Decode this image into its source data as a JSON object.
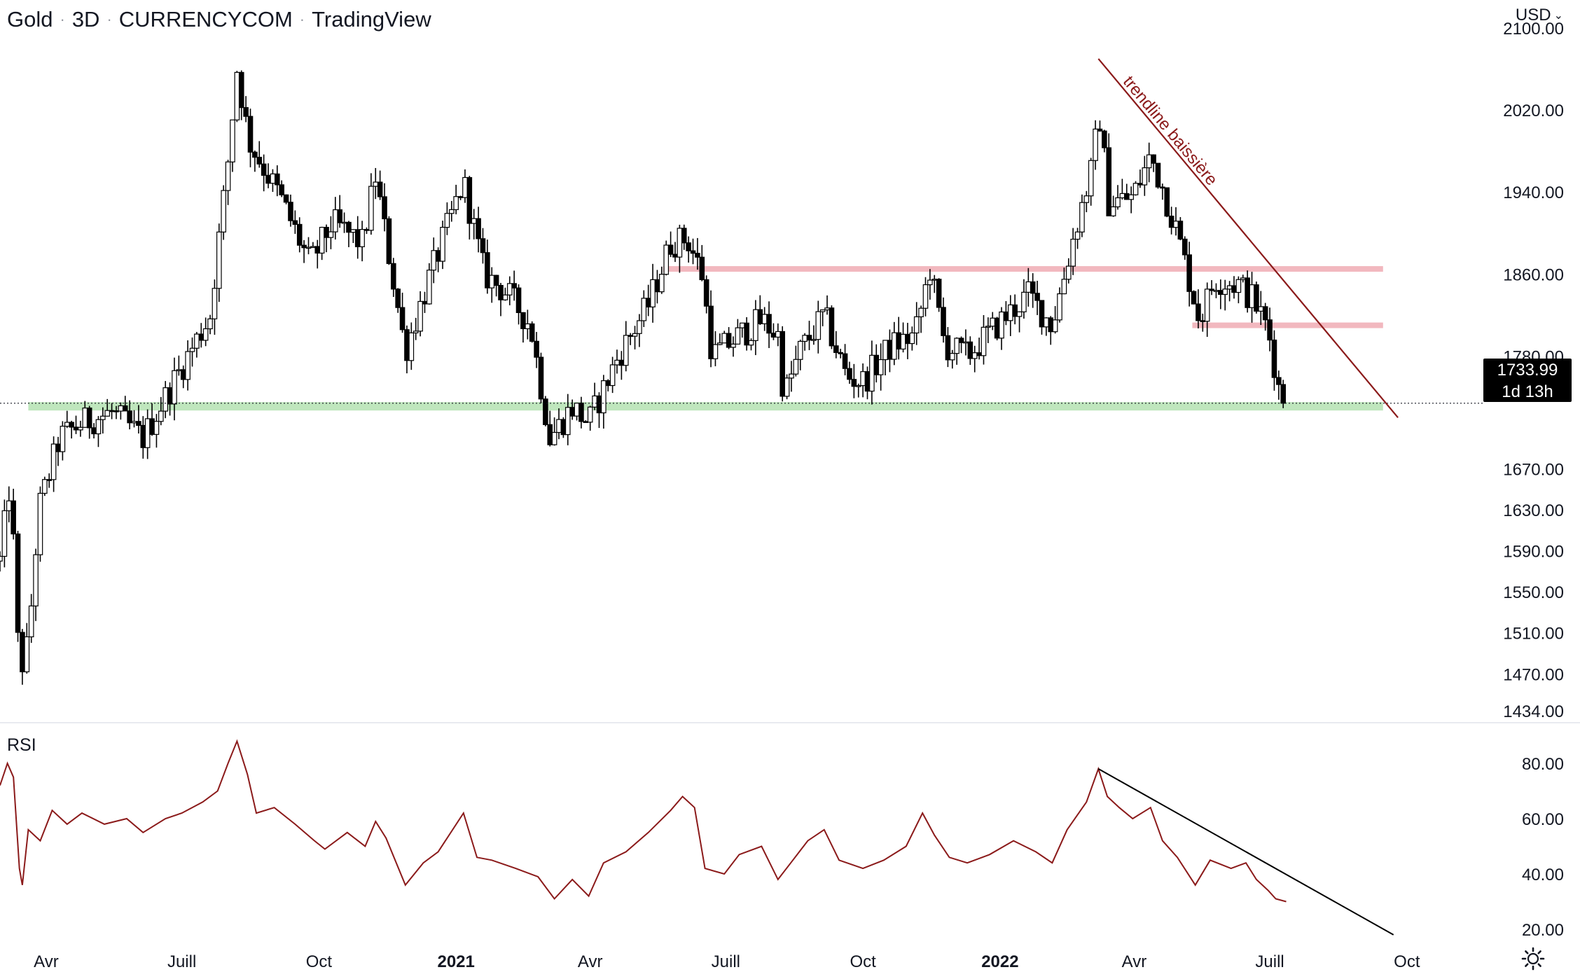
{
  "header": {
    "symbol": "Gold",
    "interval": "3D",
    "exchange": "CURRENCYCOM",
    "source": "TradingView",
    "separator": "·"
  },
  "currency": {
    "label": "USD",
    "icon": "chevron-down-icon"
  },
  "price_tag": {
    "price": "1733.99",
    "countdown": "1d 13h"
  },
  "rsi_panel": {
    "label": "RSI"
  },
  "settings": {
    "icon": "gear-icon"
  },
  "colors": {
    "candle": "#000000",
    "rsi_line": "#8b1a1a",
    "trendline": "#8b1a1a",
    "resistance_zone": "#f2b8bf",
    "support_zone": "#bfe6bd",
    "rsi_trendline": "#000000"
  },
  "chart_data": [
    {
      "type": "candlestick",
      "title": "",
      "y_axis": {
        "min": 1434,
        "max": 2100,
        "ticks": [
          "2100.00",
          "2020.00",
          "1940.00",
          "1860.00",
          "1780.00",
          "1670.00",
          "1630.00",
          "1590.00",
          "1550.00",
          "1510.00",
          "1470.00",
          "1434.00"
        ]
      },
      "x_axis": {
        "range": [
          "2020-03-01",
          "2022-10-10"
        ],
        "ticks": [
          {
            "label": "Avr",
            "date": "2020-04-01",
            "bold": false
          },
          {
            "label": "Juill",
            "date": "2020-07-01",
            "bold": false
          },
          {
            "label": "Oct",
            "date": "2020-10-01",
            "bold": false
          },
          {
            "label": "2021",
            "date": "2021-01-01",
            "bold": true
          },
          {
            "label": "Avr",
            "date": "2021-04-01",
            "bold": false
          },
          {
            "label": "Juill",
            "date": "2021-07-01",
            "bold": false
          },
          {
            "label": "Oct",
            "date": "2021-10-01",
            "bold": false
          },
          {
            "label": "2022",
            "date": "2022-01-01",
            "bold": true
          },
          {
            "label": "Avr",
            "date": "2022-04-01",
            "bold": false
          },
          {
            "label": "Juill",
            "date": "2022-07-01",
            "bold": false
          },
          {
            "label": "Oct",
            "date": "2022-10-01",
            "bold": false
          }
        ]
      },
      "last_price": 1733.99,
      "anchors": [
        [
          "2020-03-01",
          1580
        ],
        [
          "2020-03-08",
          1660
        ],
        [
          "2020-03-14",
          1470
        ],
        [
          "2020-03-20",
          1500
        ],
        [
          "2020-03-27",
          1630
        ],
        [
          "2020-04-10",
          1700
        ],
        [
          "2020-04-25",
          1715
        ],
        [
          "2020-05-15",
          1725
        ],
        [
          "2020-06-05",
          1700
        ],
        [
          "2020-06-20",
          1740
        ],
        [
          "2020-07-05",
          1780
        ],
        [
          "2020-07-20",
          1820
        ],
        [
          "2020-08-01",
          1970
        ],
        [
          "2020-08-07",
          2060
        ],
        [
          "2020-08-15",
          1990
        ],
        [
          "2020-09-05",
          1935
        ],
        [
          "2020-09-25",
          1870
        ],
        [
          "2020-10-10",
          1910
        ],
        [
          "2020-10-30",
          1890
        ],
        [
          "2020-11-08",
          1955
        ],
        [
          "2020-11-28",
          1785
        ],
        [
          "2020-12-15",
          1860
        ],
        [
          "2021-01-06",
          1950
        ],
        [
          "2021-01-20",
          1860
        ],
        [
          "2021-02-05",
          1840
        ],
        [
          "2021-02-20",
          1810
        ],
        [
          "2021-03-05",
          1700
        ],
        [
          "2021-03-20",
          1730
        ],
        [
          "2021-03-31",
          1715
        ],
        [
          "2021-04-20",
          1780
        ],
        [
          "2021-05-10",
          1830
        ],
        [
          "2021-05-25",
          1890
        ],
        [
          "2021-06-05",
          1895
        ],
        [
          "2021-06-15",
          1860
        ],
        [
          "2021-06-22",
          1780
        ],
        [
          "2021-07-10",
          1800
        ],
        [
          "2021-07-25",
          1815
        ],
        [
          "2021-08-05",
          1800
        ],
        [
          "2021-08-09",
          1740
        ],
        [
          "2021-08-20",
          1785
        ],
        [
          "2021-09-05",
          1820
        ],
        [
          "2021-09-20",
          1760
        ],
        [
          "2021-10-01",
          1755
        ],
        [
          "2021-10-20",
          1790
        ],
        [
          "2021-11-05",
          1800
        ],
        [
          "2021-11-15",
          1865
        ],
        [
          "2021-11-25",
          1790
        ],
        [
          "2021-12-10",
          1780
        ],
        [
          "2021-12-30",
          1810
        ],
        [
          "2022-01-20",
          1840
        ],
        [
          "2022-02-05",
          1810
        ],
        [
          "2022-02-20",
          1900
        ],
        [
          "2022-03-05",
          1970
        ],
        [
          "2022-03-08",
          2025
        ],
        [
          "2022-03-15",
          1930
        ],
        [
          "2022-03-31",
          1935
        ],
        [
          "2022-04-12",
          1975
        ],
        [
          "2022-04-20",
          1945
        ],
        [
          "2022-04-30",
          1900
        ],
        [
          "2022-05-15",
          1815
        ],
        [
          "2022-05-25",
          1855
        ],
        [
          "2022-06-10",
          1850
        ],
        [
          "2022-06-20",
          1835
        ],
        [
          "2022-06-30",
          1805
        ],
        [
          "2022-07-08",
          1742
        ],
        [
          "2022-07-12",
          1734
        ]
      ],
      "annotations": {
        "downtrend_line": {
          "label": "trendline baissière",
          "from": [
            "2022-03-08",
            2070
          ],
          "to": [
            "2022-09-25",
            1720
          ]
        },
        "resistance_zones": [
          {
            "from": "2021-05-20",
            "to": "2022-09-15",
            "price": 1865
          },
          {
            "from": "2022-05-10",
            "to": "2022-09-15",
            "price": 1810
          }
        ],
        "support_zone": {
          "from": "2020-03-20",
          "to": "2022-09-15",
          "price": 1731
        }
      }
    },
    {
      "type": "line",
      "title": "",
      "series_label": "RSI",
      "y_axis": {
        "min": 20,
        "max": 80,
        "ticks": [
          "80.00",
          "60.00",
          "40.00",
          "20.00"
        ]
      },
      "values": [
        [
          [
            "2020-03-01",
            72
          ],
          [
            "2020-03-06",
            80
          ],
          [
            "2020-03-10",
            75
          ],
          [
            "2020-03-14",
            42
          ],
          [
            "2020-03-16",
            36
          ],
          [
            "2020-03-20",
            56
          ],
          [
            "2020-03-28",
            52
          ],
          [
            "2020-04-05",
            63
          ],
          [
            "2020-04-15",
            58
          ],
          [
            "2020-04-25",
            62
          ],
          [
            "2020-05-10",
            58
          ],
          [
            "2020-05-25",
            60
          ],
          [
            "2020-06-05",
            55
          ],
          [
            "2020-06-20",
            60
          ],
          [
            "2020-07-01",
            62
          ],
          [
            "2020-07-15",
            66
          ],
          [
            "2020-07-25",
            70
          ],
          [
            "2020-08-01",
            80
          ],
          [
            "2020-08-07",
            88
          ],
          [
            "2020-08-14",
            76
          ],
          [
            "2020-08-20",
            62
          ],
          [
            "2020-09-01",
            64
          ],
          [
            "2020-09-15",
            58
          ],
          [
            "2020-09-28",
            52
          ],
          [
            "2020-10-05",
            49
          ],
          [
            "2020-10-20",
            55
          ],
          [
            "2020-11-01",
            50
          ],
          [
            "2020-11-08",
            59
          ],
          [
            "2020-11-15",
            53
          ],
          [
            "2020-11-28",
            36
          ],
          [
            "2020-12-10",
            44
          ],
          [
            "2020-12-20",
            48
          ],
          [
            "2021-01-06",
            62
          ],
          [
            "2021-01-15",
            46
          ],
          [
            "2021-01-25",
            45
          ],
          [
            "2021-02-10",
            42
          ],
          [
            "2021-02-25",
            39
          ],
          [
            "2021-03-08",
            31
          ],
          [
            "2021-03-20",
            38
          ],
          [
            "2021-03-31",
            32
          ],
          [
            "2021-04-10",
            44
          ],
          [
            "2021-04-25",
            48
          ],
          [
            "2021-05-10",
            55
          ],
          [
            "2021-05-25",
            63
          ],
          [
            "2021-06-02",
            68
          ],
          [
            "2021-06-10",
            64
          ],
          [
            "2021-06-17",
            42
          ],
          [
            "2021-06-30",
            40
          ],
          [
            "2021-07-10",
            47
          ],
          [
            "2021-07-25",
            50
          ],
          [
            "2021-08-05",
            38
          ],
          [
            "2021-08-15",
            45
          ],
          [
            "2021-08-25",
            52
          ],
          [
            "2021-09-05",
            56
          ],
          [
            "2021-09-15",
            45
          ],
          [
            "2021-10-01",
            42
          ],
          [
            "2021-10-15",
            45
          ],
          [
            "2021-10-30",
            50
          ],
          [
            "2021-11-10",
            62
          ],
          [
            "2021-11-18",
            54
          ],
          [
            "2021-11-28",
            46
          ],
          [
            "2021-12-10",
            44
          ],
          [
            "2021-12-25",
            47
          ],
          [
            "2022-01-10",
            52
          ],
          [
            "2022-01-25",
            48
          ],
          [
            "2022-02-05",
            44
          ],
          [
            "2022-02-15",
            56
          ],
          [
            "2022-02-28",
            66
          ],
          [
            "2022-03-08",
            78
          ],
          [
            "2022-03-14",
            68
          ],
          [
            "2022-03-22",
            64
          ],
          [
            "2022-03-31",
            60
          ],
          [
            "2022-04-12",
            64
          ],
          [
            "2022-04-20",
            52
          ],
          [
            "2022-04-30",
            46
          ],
          [
            "2022-05-12",
            36
          ],
          [
            "2022-05-22",
            45
          ],
          [
            "2022-06-05",
            42
          ],
          [
            "2022-06-15",
            44
          ],
          [
            "2022-06-22",
            38
          ],
          [
            "2022-06-30",
            34
          ],
          [
            "2022-07-05",
            31
          ],
          [
            "2022-07-12",
            30
          ]
        ]
      ],
      "annotations": {
        "downtrend_line": {
          "from": [
            "2022-03-08",
            78
          ],
          "to": [
            "2022-09-22",
            18
          ]
        }
      }
    }
  ]
}
